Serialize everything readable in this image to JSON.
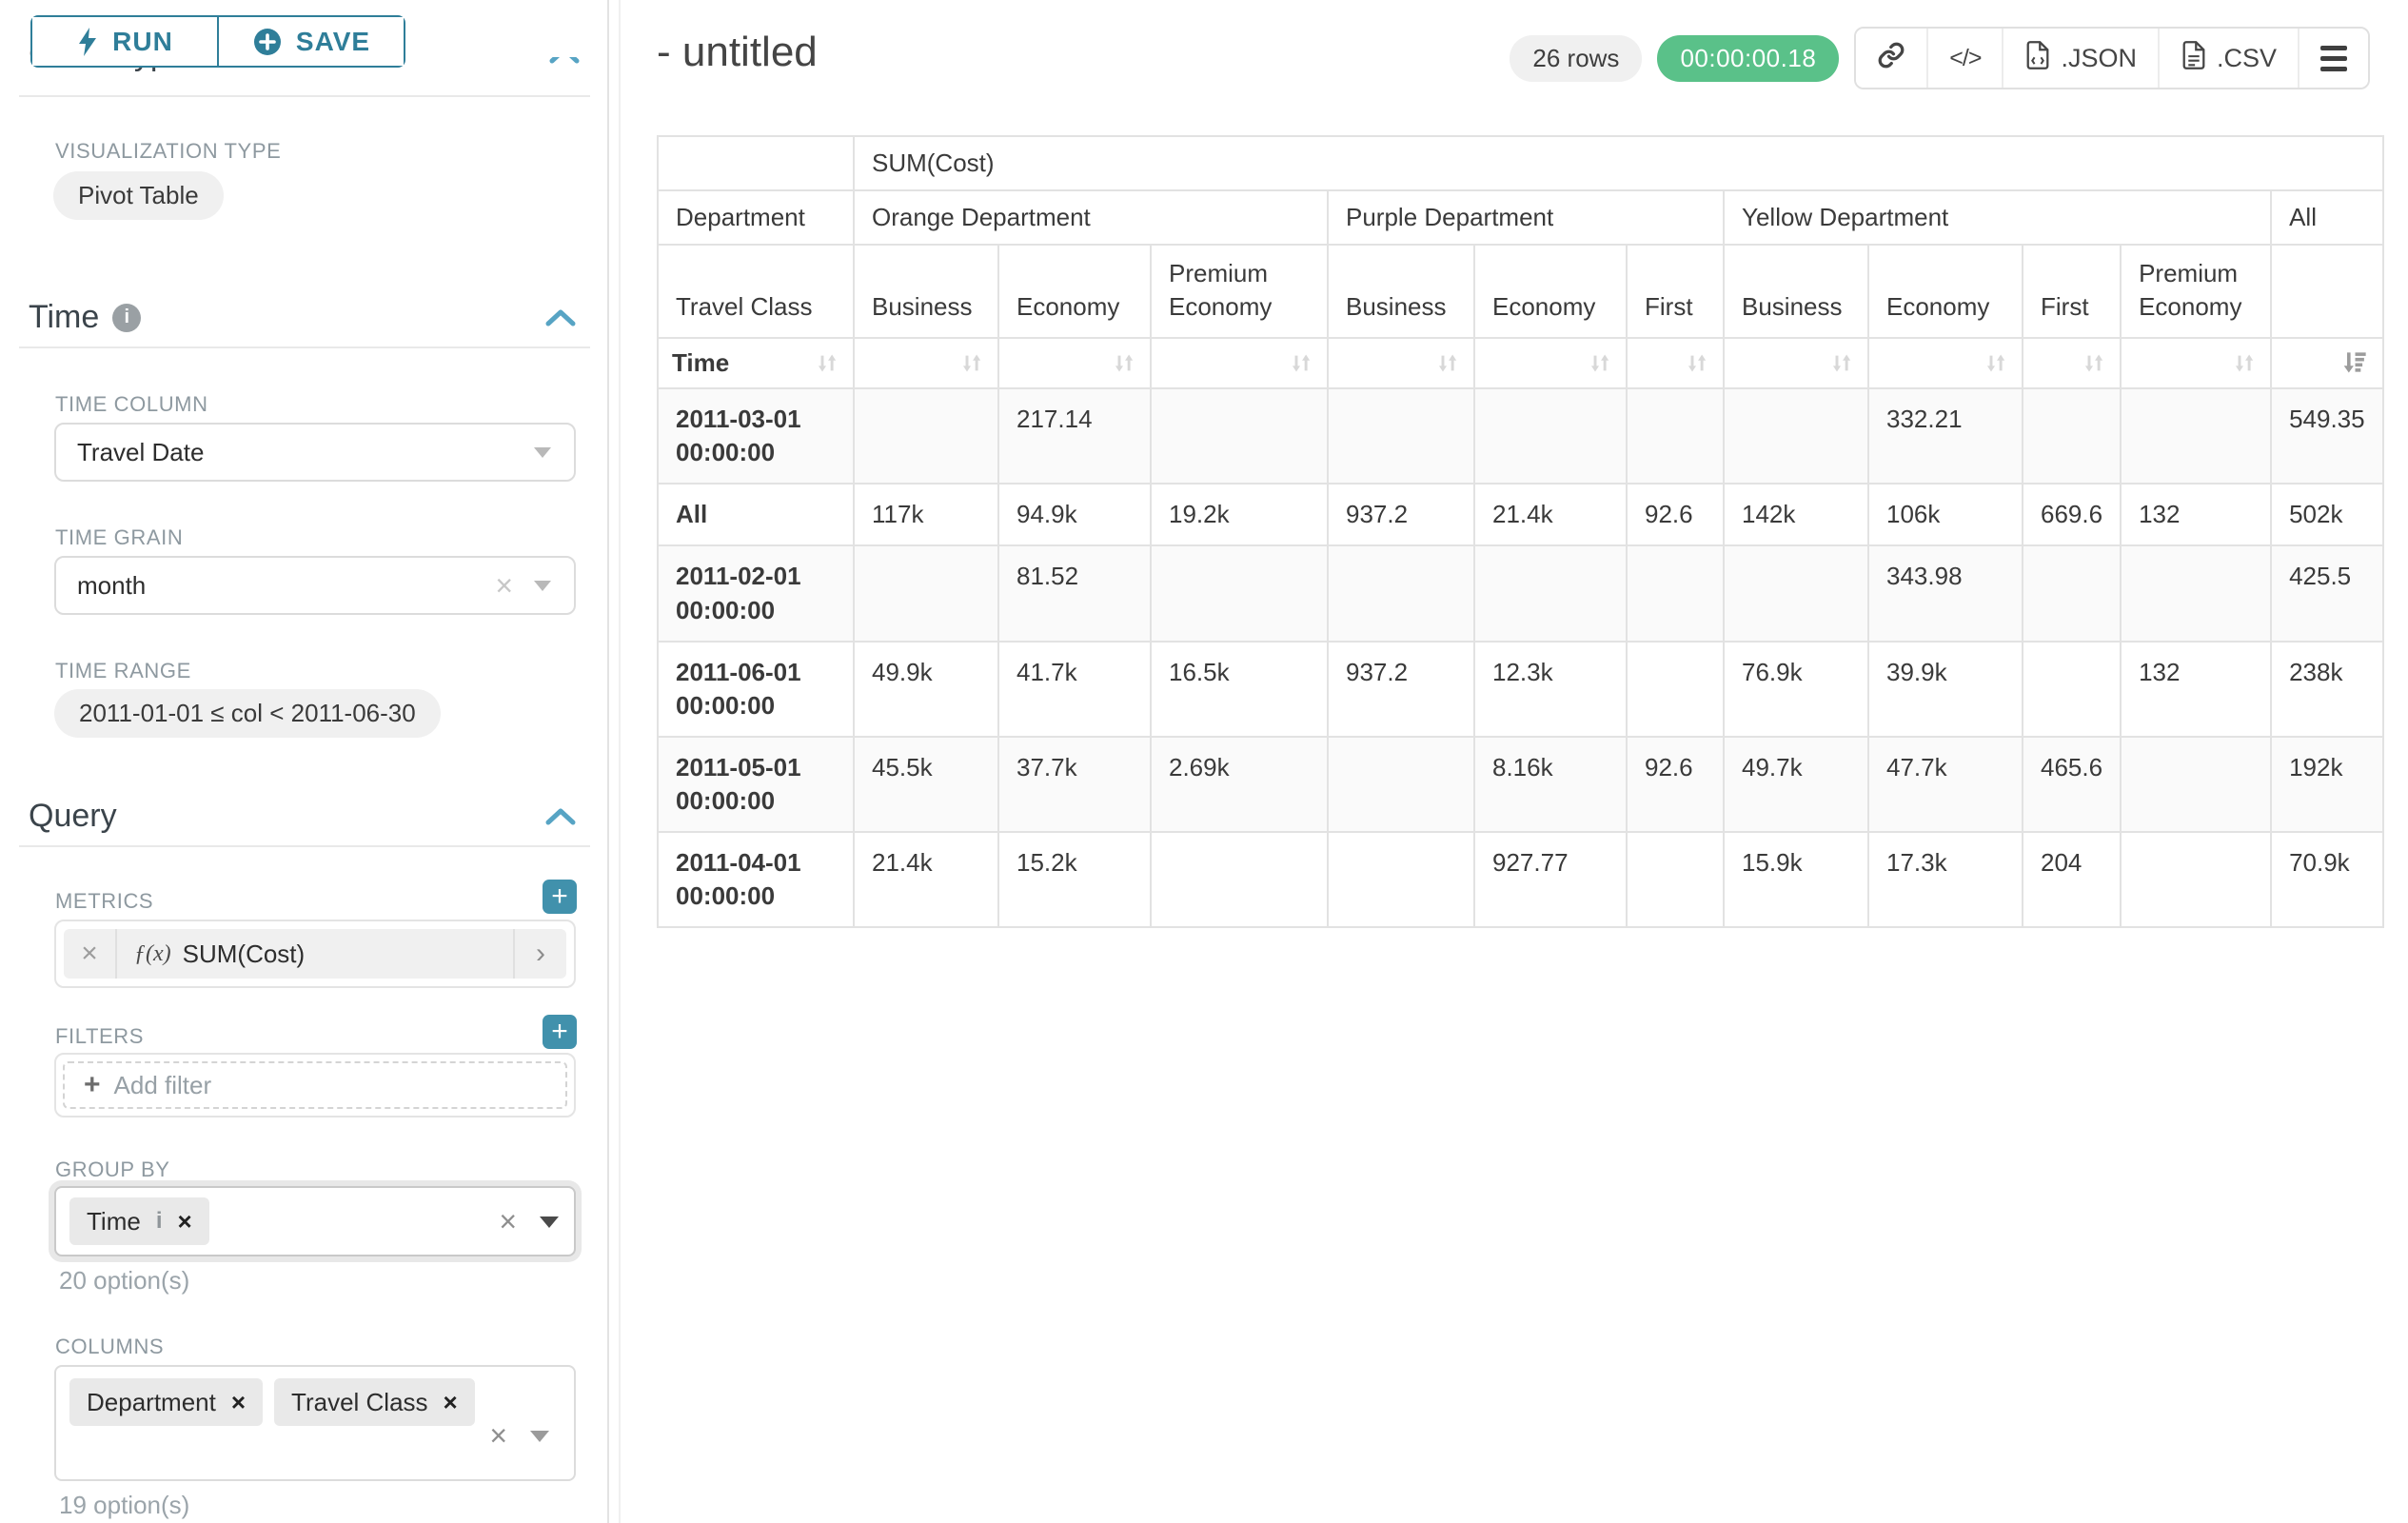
{
  "ui_colors": {
    "accent": "#2f7e99",
    "accent_light": "#57a4c4",
    "success": "#5ac189"
  },
  "sidebar": {
    "run_button": "RUN",
    "save_button": "SAVE",
    "chart_type_heading": "Chart Type",
    "visualization_type_label": "VISUALIZATION TYPE",
    "visualization_type_value": "Pivot Table",
    "time": {
      "heading": "Time",
      "time_column_label": "TIME COLUMN",
      "time_column_value": "Travel Date",
      "time_grain_label": "TIME GRAIN",
      "time_grain_value": "month",
      "time_range_label": "TIME RANGE",
      "time_range_value": "2011-01-01 ≤ col < 2011-06-30"
    },
    "query": {
      "heading": "Query",
      "metrics_label": "METRICS",
      "metric_fx": "ƒ(x)",
      "metric_value": "SUM(Cost)",
      "filters_label": "FILTERS",
      "add_filter_placeholder": "Add filter",
      "group_by_label": "GROUP BY",
      "group_by_values": [
        "Time"
      ],
      "group_by_hint": "20 option(s)",
      "columns_label": "COLUMNS",
      "columns_values": [
        "Department",
        "Travel Class"
      ],
      "columns_hint": "19 option(s)"
    }
  },
  "header": {
    "title": "- untitled",
    "rows_badge": "26 rows",
    "timer_badge": "00:00:00.18",
    "json_button": ".JSON",
    "csv_button": ".CSV"
  },
  "chart_data": {
    "type": "table",
    "metric": "SUM(Cost)",
    "row_dimension_label": "Time",
    "department_axis_label": "Department",
    "travel_class_axis_label": "Travel Class",
    "column_groups": [
      {
        "name": "Orange Department",
        "cols": [
          "Business",
          "Economy",
          "Premium Economy"
        ]
      },
      {
        "name": "Purple Department",
        "cols": [
          "Business",
          "Economy",
          "First"
        ]
      },
      {
        "name": "Yellow Department",
        "cols": [
          "Business",
          "Economy",
          "First",
          "Premium Economy"
        ]
      },
      {
        "name": "All",
        "cols": [
          ""
        ]
      }
    ],
    "rows": [
      {
        "label": "2011-03-01 00:00:00",
        "values": [
          "",
          "217.14",
          "",
          "",
          "",
          "",
          "",
          "332.21",
          "",
          "",
          "549.35"
        ]
      },
      {
        "label": "All",
        "values": [
          "117k",
          "94.9k",
          "19.2k",
          "937.2",
          "21.4k",
          "92.6",
          "142k",
          "106k",
          "669.6",
          "132",
          "502k"
        ]
      },
      {
        "label": "2011-02-01 00:00:00",
        "values": [
          "",
          "81.52",
          "",
          "",
          "",
          "",
          "",
          "343.98",
          "",
          "",
          "425.5"
        ]
      },
      {
        "label": "2011-06-01 00:00:00",
        "values": [
          "49.9k",
          "41.7k",
          "16.5k",
          "937.2",
          "12.3k",
          "",
          "76.9k",
          "39.9k",
          "",
          "132",
          "238k"
        ]
      },
      {
        "label": "2011-05-01 00:00:00",
        "values": [
          "45.5k",
          "37.7k",
          "2.69k",
          "",
          "8.16k",
          "92.6",
          "49.7k",
          "47.7k",
          "465.6",
          "",
          "192k"
        ]
      },
      {
        "label": "2011-04-01 00:00:00",
        "values": [
          "21.4k",
          "15.2k",
          "",
          "",
          "927.77",
          "",
          "15.9k",
          "17.3k",
          "204",
          "",
          "70.9k"
        ]
      }
    ],
    "sorted_column": "All",
    "sort_direction": "desc"
  }
}
